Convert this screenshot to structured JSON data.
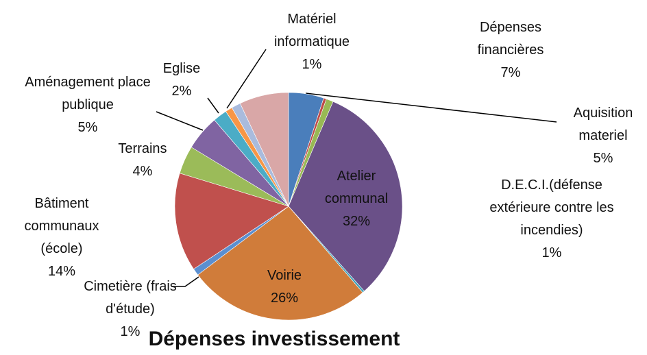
{
  "chart_data": {
    "type": "pie",
    "title": "Dépenses investissement",
    "categories": [
      "Aquisition materiel",
      null,
      "D.E.C.I.(défense extérieure contre les incendies)",
      "Atelier communal",
      null,
      "Voirie",
      "Cimetière (frais d'étude)",
      "Bâtiment communaux (école)",
      "Terrains",
      "Aménagement place publique",
      "Eglise",
      "Matériel informatique",
      null,
      "Dépenses financières"
    ],
    "values": [
      5,
      0.4,
      1,
      32,
      0.3,
      26,
      1,
      14,
      4,
      5,
      2,
      1,
      1.3,
      7
    ],
    "value_labels": [
      "5%",
      null,
      "1%",
      "32%",
      null,
      "26%",
      "1%",
      "14%",
      "4%",
      "5%",
      "2%",
      "1%",
      null,
      "7%"
    ],
    "colors": [
      "#4a7ebb",
      "#be4b48",
      "#98b954",
      "#6a5088",
      "#3fa0b8",
      "#d07c3a",
      "#5b8fd0",
      "#c0504d",
      "#9bbb59",
      "#8064a2",
      "#4bacc6",
      "#f79646",
      "#a9bbdd",
      "#d9a7a7"
    ]
  }
}
